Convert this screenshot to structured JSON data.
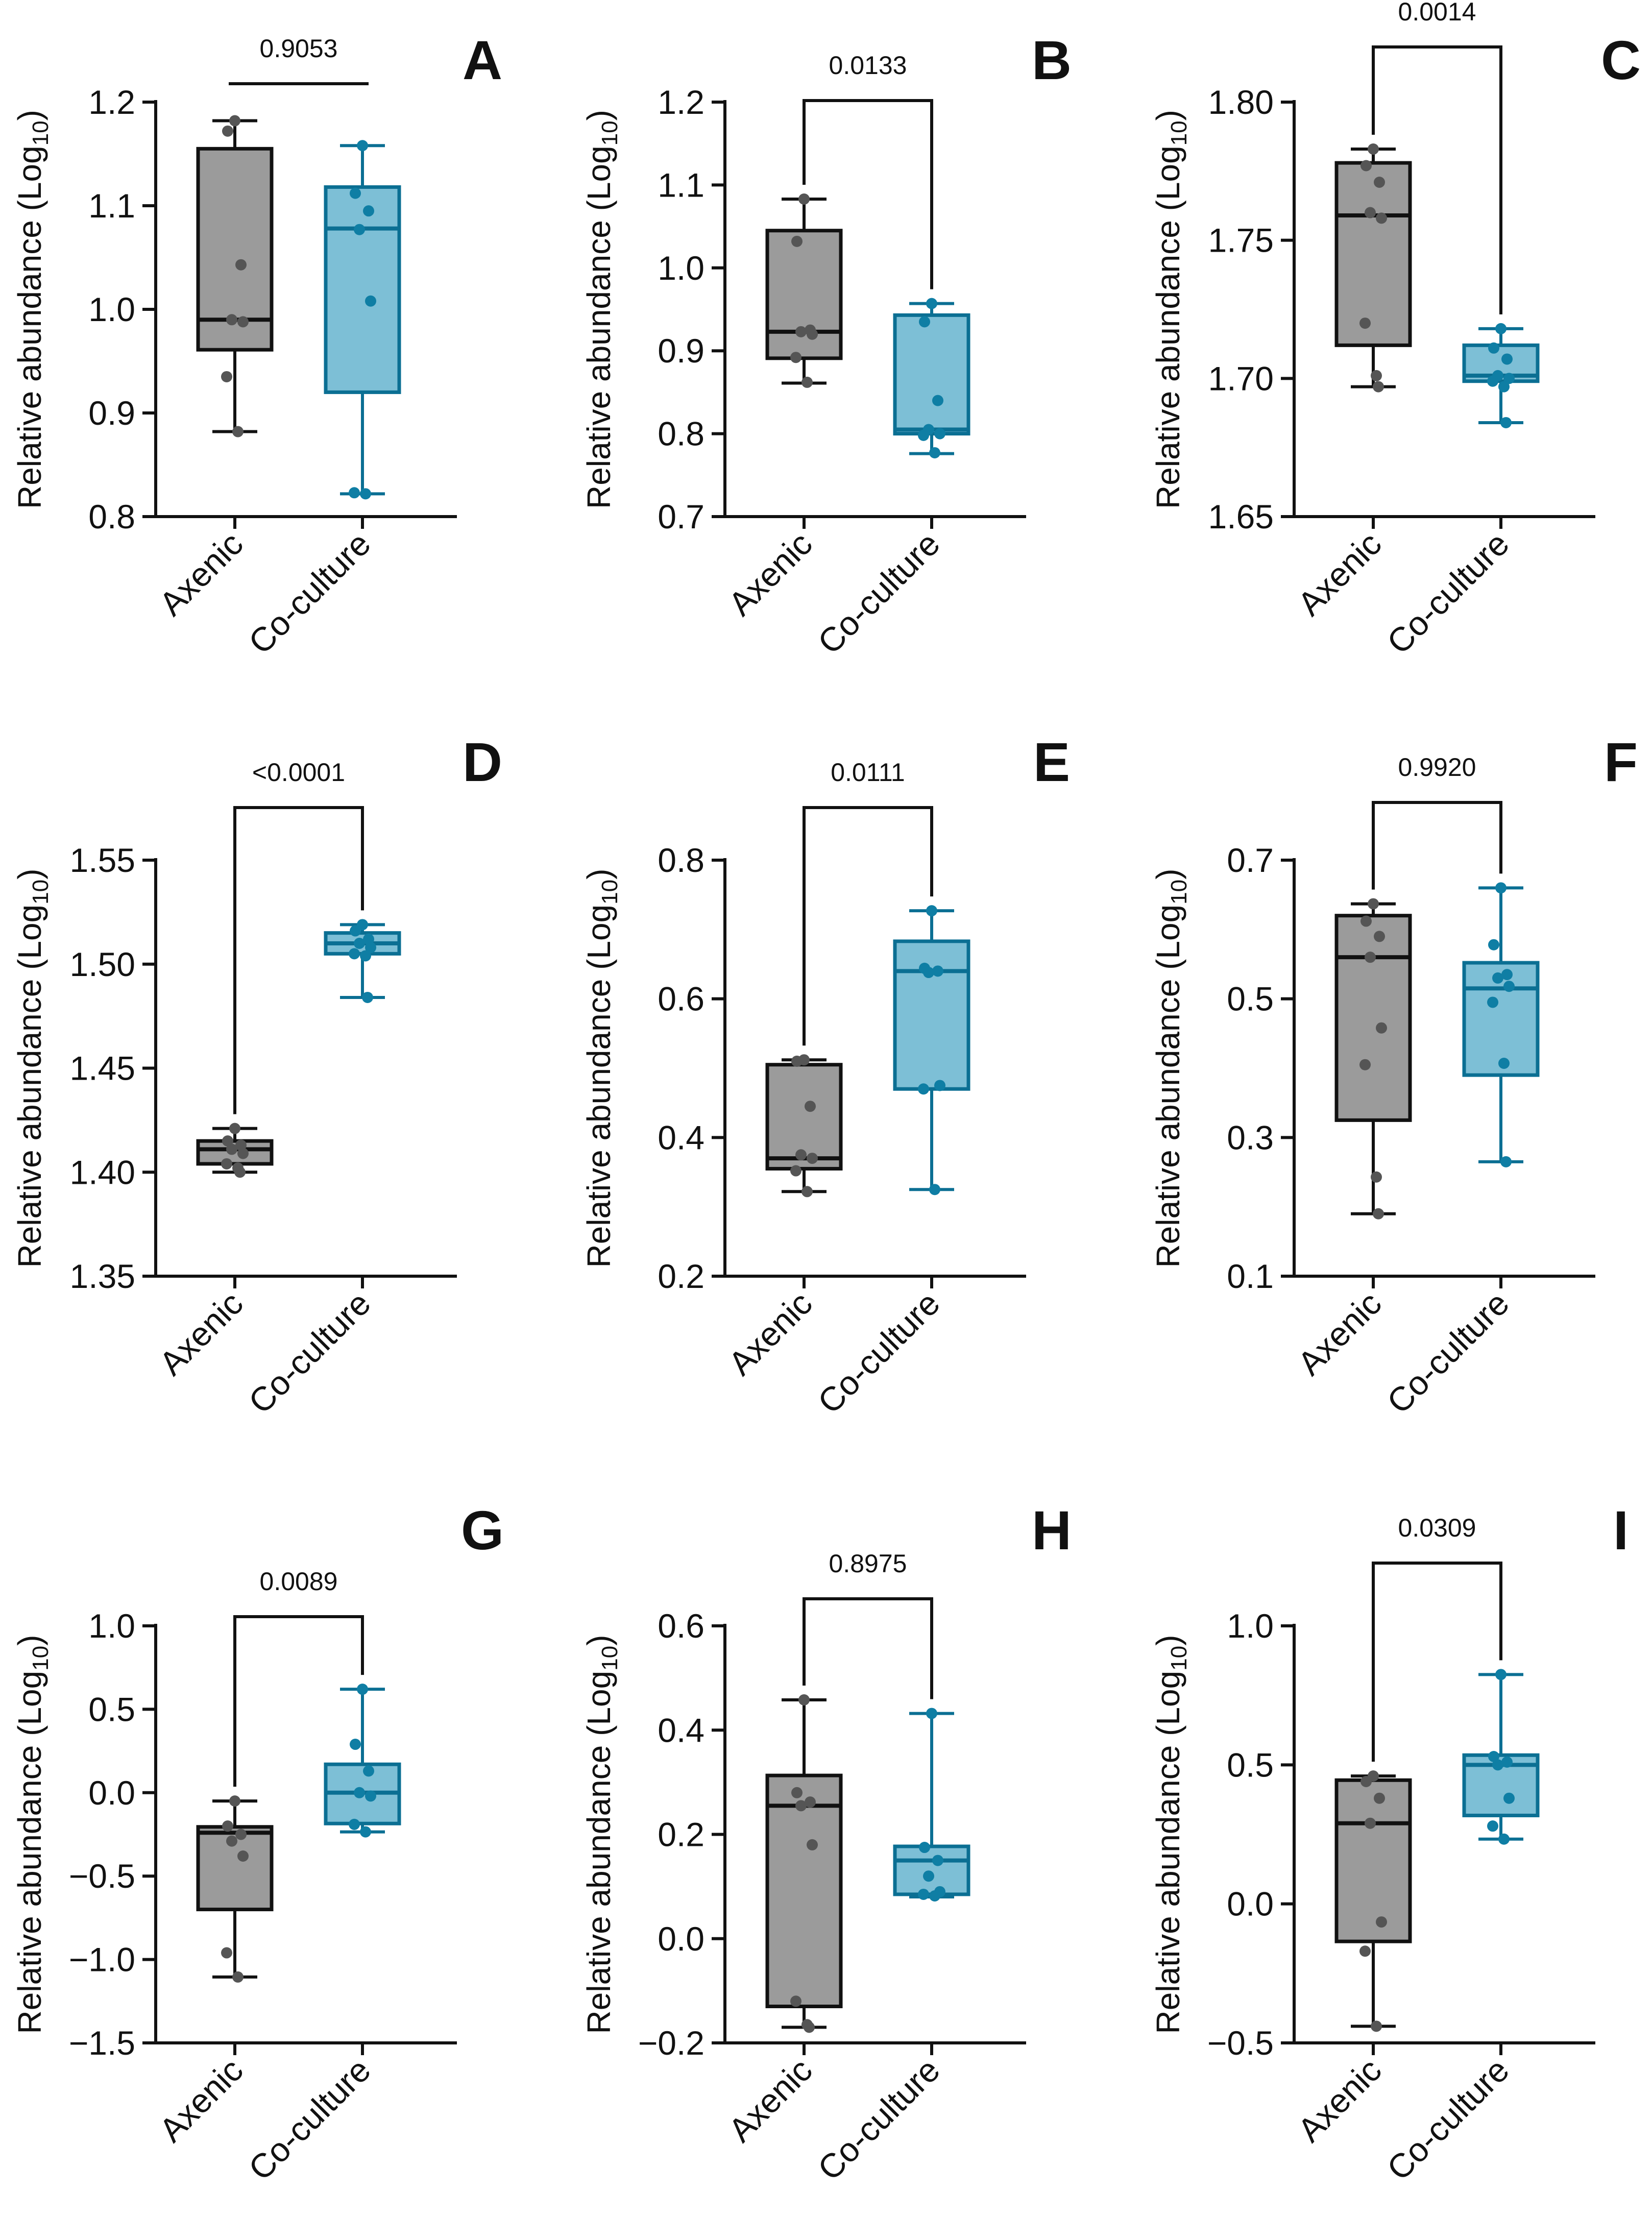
{
  "figure": {
    "groups": [
      "Axenic",
      "Co-culture"
    ],
    "ylabel_prefix": "Relative abundance (Log",
    "ylabel_sub": "10",
    "ylabel_suffix": ")",
    "colors": {
      "axenic_fill": "#9b9b9b",
      "coculture_fill": "#7dbfd6",
      "axenic_stroke": "#111111",
      "coculture_stroke": "#0b6f93"
    }
  },
  "chart_data": [
    {
      "type": "box",
      "panel": "A",
      "pvalue": "0.9053",
      "ylim": [
        0.8,
        1.2
      ],
      "yticks": [
        "0.8",
        "0.9",
        "1.0",
        "1.1",
        "1.2"
      ],
      "boxes": [
        {
          "group": "Axenic",
          "min": 0.882,
          "q1": 0.961,
          "median": 0.99,
          "q3": 1.155,
          "max": 1.182,
          "points": [
            1.182,
            1.172,
            1.043,
            0.99,
            0.988,
            0.935,
            0.882
          ]
        },
        {
          "group": "Co-culture",
          "min": 0.822,
          "q1": 0.92,
          "median": 1.078,
          "q3": 1.118,
          "max": 1.158,
          "points": [
            1.158,
            1.112,
            1.095,
            1.077,
            1.008,
            0.823,
            0.822
          ]
        }
      ]
    },
    {
      "type": "box",
      "panel": "B",
      "pvalue": "0.0133",
      "ylim": [
        0.7,
        1.2
      ],
      "yticks": [
        "0.7",
        "0.8",
        "0.9",
        "1.0",
        "1.1",
        "1.2"
      ],
      "boxes": [
        {
          "group": "Axenic",
          "min": 0.861,
          "q1": 0.891,
          "median": 0.923,
          "q3": 1.045,
          "max": 1.083,
          "points": [
            1.083,
            1.032,
            0.925,
            0.923,
            0.92,
            0.892,
            0.862
          ]
        },
        {
          "group": "Co-culture",
          "min": 0.776,
          "q1": 0.8,
          "median": 0.805,
          "q3": 0.943,
          "max": 0.957,
          "points": [
            0.957,
            0.935,
            0.84,
            0.805,
            0.8,
            0.798,
            0.777
          ]
        }
      ]
    },
    {
      "type": "box",
      "panel": "C",
      "pvalue": "0.0014",
      "ylim": [
        1.65,
        1.8
      ],
      "yticks": [
        "1.65",
        "1.70",
        "1.75",
        "1.80"
      ],
      "boxes": [
        {
          "group": "Axenic",
          "min": 1.697,
          "q1": 1.712,
          "median": 1.759,
          "q3": 1.778,
          "max": 1.783,
          "points": [
            1.783,
            1.777,
            1.771,
            1.76,
            1.758,
            1.72,
            1.701,
            1.697
          ]
        },
        {
          "group": "Co-culture",
          "min": 1.684,
          "q1": 1.699,
          "median": 1.701,
          "q3": 1.712,
          "max": 1.718,
          "points": [
            1.718,
            1.711,
            1.707,
            1.701,
            1.7,
            1.699,
            1.697,
            1.684
          ]
        }
      ]
    },
    {
      "type": "box",
      "panel": "D",
      "pvalue": "<0.0001",
      "ylim": [
        1.35,
        1.55
      ],
      "yticks": [
        "1.35",
        "1.40",
        "1.45",
        "1.50",
        "1.55"
      ],
      "boxes": [
        {
          "group": "Axenic",
          "min": 1.4,
          "q1": 1.404,
          "median": 1.411,
          "q3": 1.415,
          "max": 1.421,
          "points": [
            1.421,
            1.415,
            1.413,
            1.411,
            1.409,
            1.404,
            1.402,
            1.4
          ]
        },
        {
          "group": "Co-culture",
          "min": 1.484,
          "q1": 1.505,
          "median": 1.51,
          "q3": 1.515,
          "max": 1.519,
          "points": [
            1.519,
            1.516,
            1.512,
            1.51,
            1.508,
            1.505,
            1.504,
            1.484
          ]
        }
      ]
    },
    {
      "type": "box",
      "panel": "E",
      "pvalue": "0.0111",
      "ylim": [
        0.2,
        0.8
      ],
      "yticks": [
        "0.2",
        "0.4",
        "0.6",
        "0.8"
      ],
      "boxes": [
        {
          "group": "Axenic",
          "min": 0.322,
          "q1": 0.355,
          "median": 0.37,
          "q3": 0.505,
          "max": 0.512,
          "points": [
            0.512,
            0.51,
            0.445,
            0.375,
            0.37,
            0.352,
            0.322
          ]
        },
        {
          "group": "Co-culture",
          "min": 0.325,
          "q1": 0.47,
          "median": 0.64,
          "q3": 0.683,
          "max": 0.727,
          "points": [
            0.727,
            0.644,
            0.64,
            0.638,
            0.475,
            0.47,
            0.325
          ]
        }
      ]
    },
    {
      "type": "box",
      "panel": "F",
      "pvalue": "0.9920",
      "ylim": [
        0.1,
        0.7
      ],
      "yticks": [
        "0.1",
        "0.3",
        "0.5",
        "0.7"
      ],
      "boxes": [
        {
          "group": "Axenic",
          "min": 0.19,
          "q1": 0.325,
          "median": 0.56,
          "q3": 0.62,
          "max": 0.637,
          "points": [
            0.637,
            0.612,
            0.59,
            0.56,
            0.458,
            0.405,
            0.243,
            0.19
          ]
        },
        {
          "group": "Co-culture",
          "min": 0.265,
          "q1": 0.39,
          "median": 0.515,
          "q3": 0.552,
          "max": 0.66,
          "points": [
            0.66,
            0.578,
            0.535,
            0.53,
            0.518,
            0.495,
            0.407,
            0.265
          ]
        }
      ]
    },
    {
      "type": "box",
      "panel": "G",
      "pvalue": "0.0089",
      "ylim": [
        -1.5,
        1.0
      ],
      "yticks": [
        "−1.5",
        "−1.0",
        "−0.5",
        "0.0",
        "0.5",
        "1.0"
      ],
      "boxes": [
        {
          "group": "Axenic",
          "min": -1.105,
          "q1": -0.7,
          "median": -0.24,
          "q3": -0.205,
          "max": -0.05,
          "points": [
            -0.05,
            -0.2,
            -0.25,
            -0.29,
            -0.38,
            -0.96,
            -1.105
          ]
        },
        {
          "group": "Co-culture",
          "min": -0.235,
          "q1": -0.185,
          "median": 0.0,
          "q3": 0.17,
          "max": 0.62,
          "points": [
            0.62,
            0.29,
            0.13,
            0.0,
            -0.02,
            -0.19,
            -0.235
          ]
        }
      ]
    },
    {
      "type": "box",
      "panel": "H",
      "pvalue": "0.8975",
      "ylim": [
        -0.2,
        0.6
      ],
      "yticks": [
        "−0.2",
        "0.0",
        "0.2",
        "0.4",
        "0.6"
      ],
      "boxes": [
        {
          "group": "Axenic",
          "min": -0.17,
          "q1": -0.13,
          "median": 0.255,
          "q3": 0.313,
          "max": 0.458,
          "points": [
            0.458,
            0.28,
            0.262,
            0.255,
            0.18,
            -0.12,
            -0.165,
            -0.17
          ]
        },
        {
          "group": "Co-culture",
          "min": 0.08,
          "q1": 0.085,
          "median": 0.15,
          "q3": 0.177,
          "max": 0.432,
          "points": [
            0.432,
            0.175,
            0.15,
            0.12,
            0.09,
            0.085,
            0.082
          ]
        }
      ]
    },
    {
      "type": "box",
      "panel": "I",
      "pvalue": "0.0309",
      "ylim": [
        -0.5,
        1.0
      ],
      "yticks": [
        "−0.5",
        "0.0",
        "0.5",
        "1.0"
      ],
      "boxes": [
        {
          "group": "Axenic",
          "min": -0.44,
          "q1": -0.135,
          "median": 0.29,
          "q3": 0.445,
          "max": 0.46,
          "points": [
            0.46,
            0.44,
            0.38,
            0.29,
            -0.065,
            -0.17,
            -0.44
          ]
        },
        {
          "group": "Co-culture",
          "min": 0.233,
          "q1": 0.318,
          "median": 0.5,
          "q3": 0.535,
          "max": 0.825,
          "points": [
            0.825,
            0.53,
            0.51,
            0.5,
            0.38,
            0.28,
            0.233
          ]
        }
      ]
    }
  ]
}
